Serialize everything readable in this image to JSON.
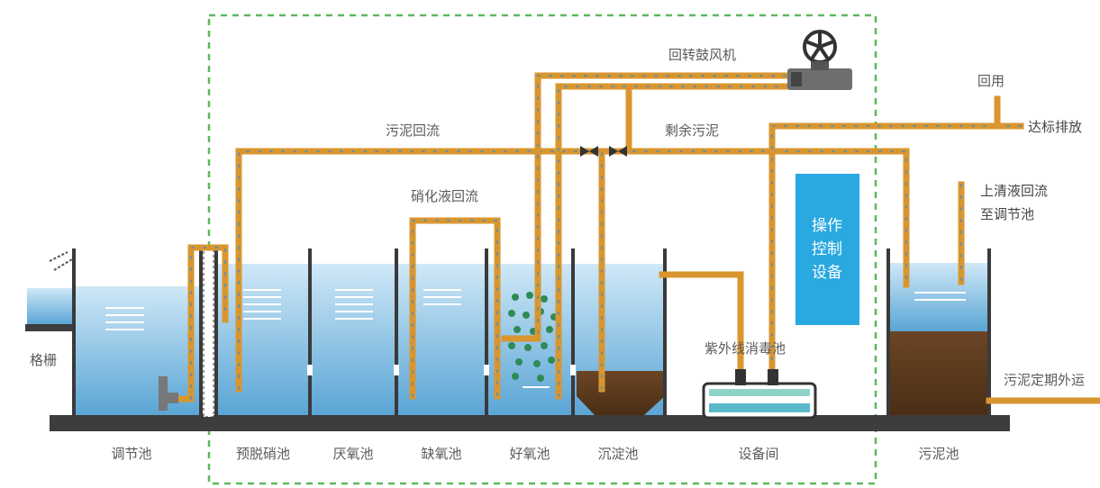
{
  "labels": {
    "blower": "回转鼓风机",
    "reuse": "回用",
    "discharge": "达标排放",
    "sludge_return": "污泥回流",
    "excess_sludge": "剩余污泥",
    "nitrate_return": "硝化液回流",
    "supernatant_line1": "上清液回流",
    "supernatant_line2": "至调节池",
    "grating": "格栅",
    "uv_tank": "紫外线消毒池",
    "sludge_outside": "污泥定期外运",
    "control_line1": "操作",
    "control_line2": "控制",
    "control_line3": "设备"
  },
  "tanks": [
    {
      "label": "调节池"
    },
    {
      "label": "预脱硝池"
    },
    {
      "label": "厌氧池"
    },
    {
      "label": "缺氧池"
    },
    {
      "label": "好氧池"
    },
    {
      "label": "沉淀池"
    },
    {
      "label": "设备间"
    },
    {
      "label": "污泥池"
    }
  ],
  "colors": {
    "pipe": "#d9962f",
    "water_top": "#bfe0f3",
    "water_bottom": "#5ba6d6",
    "sludge": "#5b3a1e",
    "control_box": "#2aa8e0",
    "dashed_border": "#5cb85c"
  },
  "icons": [
    "fan-icon",
    "valve-icon"
  ]
}
